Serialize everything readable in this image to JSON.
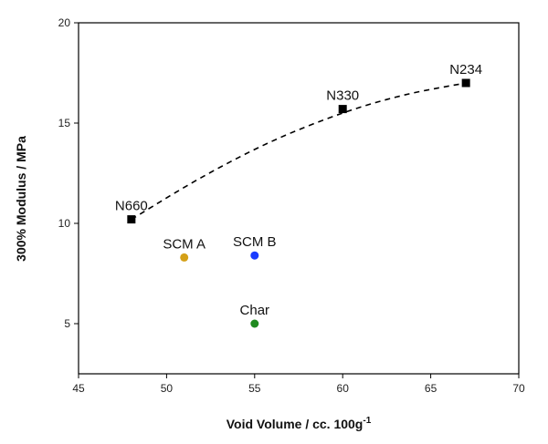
{
  "chart_data": {
    "type": "scatter",
    "xlabel": "Void Volume / cc. 100g",
    "xlabel_superscript": "-1",
    "ylabel": "300% Modulus / MPa",
    "xlim": [
      45,
      70
    ],
    "ylim": [
      2.5,
      20
    ],
    "xticks": [
      45,
      50,
      55,
      60,
      65,
      70
    ],
    "yticks": [
      5,
      10,
      15,
      20
    ],
    "grid": false,
    "points": [
      {
        "label": "N660",
        "x": 48,
        "y": 10.2,
        "marker": "square",
        "color": "#000000"
      },
      {
        "label": "N330",
        "x": 60,
        "y": 15.7,
        "marker": "square",
        "color": "#000000"
      },
      {
        "label": "N234",
        "x": 67,
        "y": 17.0,
        "marker": "square",
        "color": "#000000"
      },
      {
        "label": "SCM A",
        "x": 51,
        "y": 8.3,
        "marker": "circle",
        "color": "#d4a017"
      },
      {
        "label": "SCM B",
        "x": 55,
        "y": 8.4,
        "marker": "circle",
        "color": "#1a3cff"
      },
      {
        "label": "Char",
        "x": 55,
        "y": 5.0,
        "marker": "circle",
        "color": "#1f8a1f"
      }
    ],
    "trendline": {
      "style": "dashed",
      "color": "#000000",
      "points": [
        [
          48,
          10.2
        ],
        [
          52,
          12.3
        ],
        [
          56,
          14.1
        ],
        [
          60,
          15.5
        ],
        [
          63.5,
          16.4
        ],
        [
          67,
          17.0
        ]
      ]
    }
  }
}
